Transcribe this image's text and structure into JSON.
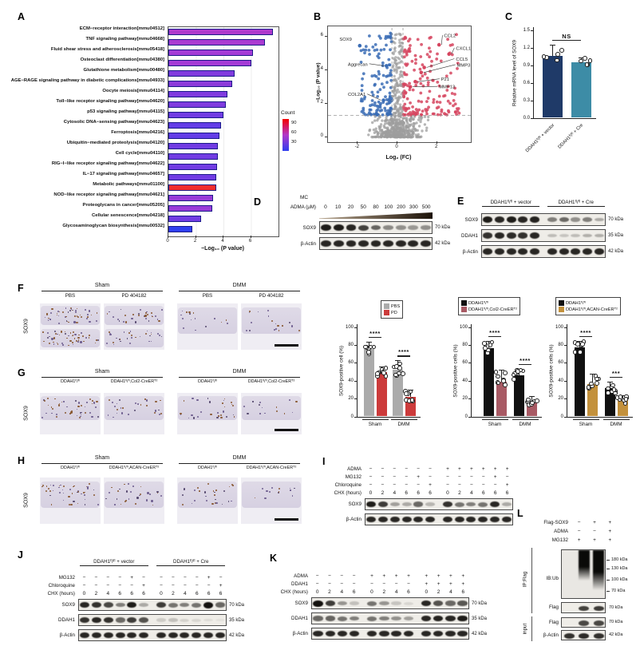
{
  "panel_a": {
    "letter": "A",
    "xlabel": "−Log₁₀ (P value)",
    "xticks": [
      "0",
      "2",
      "4",
      "6"
    ],
    "xmax": 8,
    "legend": {
      "title": "Count",
      "ticks": [
        "90",
        "60",
        "30"
      ],
      "colors": [
        "#F50000",
        "#B238C9",
        "#2F3FEF"
      ]
    },
    "pathways": [
      {
        "label": "ECM−receptor interaction[mmu04512]",
        "value": 7.6,
        "color": "#AF3ACD"
      },
      {
        "label": "TNF signaling pathway[mmu04668]",
        "value": 7.0,
        "color": "#AA3BD1"
      },
      {
        "label": "Fluid shear stress and atherosclerosis[mmu05418]",
        "value": 6.15,
        "color": "#A43BD6"
      },
      {
        "label": "Osteoclast differentiation[mmu04380]",
        "value": 6.0,
        "color": "#A43BD6"
      },
      {
        "label": "Glutathione metabolism[mmu00480]",
        "value": 4.8,
        "color": "#803BDE"
      },
      {
        "label": "AGE−RAGE signaling pathway in diabetic complications[mmu04933]",
        "value": 4.65,
        "color": "#8C3BDA"
      },
      {
        "label": "Oocyte meiosis[mmu04114]",
        "value": 4.3,
        "color": "#7F3BDF"
      },
      {
        "label": "Toll−like receptor signaling pathway[mmu04620]",
        "value": 4.15,
        "color": "#7F3BDF"
      },
      {
        "label": "p53 signaling pathway[mmu04115]",
        "value": 4.0,
        "color": "#713CE3"
      },
      {
        "label": "Cytosolic DNA−sensing pathway[mmu04623]",
        "value": 3.8,
        "color": "#633DE7"
      },
      {
        "label": "Ferroptosis[mmu04216]",
        "value": 3.7,
        "color": "#633DE7"
      },
      {
        "label": "Ubiquitin−mediated proteolysis[mmu04120]",
        "value": 3.6,
        "color": "#713CE3"
      },
      {
        "label": "Cell cycle[mmu04110]",
        "value": 3.6,
        "color": "#713CE3"
      },
      {
        "label": "RIG−I−like receptor signaling pathway[mmu04622]",
        "value": 3.55,
        "color": "#713CE3"
      },
      {
        "label": "IL−17 signaling pathway[mmu04657]",
        "value": 3.5,
        "color": "#713CE3"
      },
      {
        "label": "Metabolic pathways[mmu01100]",
        "value": 3.5,
        "color": "#F02D2D"
      },
      {
        "label": "NOD−like receptor signaling pathway[mmu04621]",
        "value": 3.25,
        "color": "#993BD8"
      },
      {
        "label": "Proteoglycans in cancer[mmu05205]",
        "value": 3.2,
        "color": "#993BD8"
      },
      {
        "label": "Cellular senescence[mmu04218]",
        "value": 2.35,
        "color": "#713CE3"
      },
      {
        "label": "Glycosaminoglycan biosynthesis[mmu00532]",
        "value": 1.75,
        "color": "#2F3FEF"
      }
    ]
  },
  "panel_b": {
    "letter": "B",
    "xlabel": "Log₂ (FC)",
    "ylabel": "−Log₁₀ (P value)",
    "xticks": [
      "-2",
      "0",
      "2"
    ],
    "yticks": [
      "0",
      "2",
      "4",
      "6"
    ],
    "colors": {
      "up": "#D6455F",
      "down": "#3A6CB5",
      "ns": "#9E9E9E"
    },
    "genes": [
      {
        "name": "SOX9",
        "lx": -2.3,
        "ly": 5.8,
        "px": -1.9,
        "py": 5.45,
        "side": "left",
        "line": false
      },
      {
        "name": "Aggrecan",
        "lx": -1.5,
        "ly": 4.3,
        "px": -0.55,
        "py": 4.25,
        "side": "left",
        "line": true
      },
      {
        "name": "COL2A1",
        "lx": -1.6,
        "ly": 2.5,
        "px": -0.7,
        "py": 2.2,
        "side": "left",
        "line": true
      },
      {
        "name": "CCL2",
        "lx": 2.35,
        "ly": 6.0,
        "px": 2.1,
        "py": 5.5,
        "side": "right",
        "line": true
      },
      {
        "name": "CXCL10",
        "lx": 2.95,
        "ly": 5.25,
        "px": 2.6,
        "py": 4.95,
        "side": "right",
        "line": true
      },
      {
        "name": "CCL5",
        "lx": 2.95,
        "ly": 4.6,
        "px": 1.35,
        "py": 4.15,
        "side": "right",
        "line": true
      },
      {
        "name": "MMP3",
        "lx": 3.0,
        "ly": 4.25,
        "px": 1.2,
        "py": 3.85,
        "side": "right",
        "line": true
      },
      {
        "name": "P21",
        "lx": 2.2,
        "ly": 3.4,
        "px": 0.9,
        "py": 3.3,
        "side": "right",
        "line": true
      },
      {
        "name": "MMP13",
        "lx": 2.1,
        "ly": 2.95,
        "px": 0.65,
        "py": 3.0,
        "side": "right",
        "line": true
      }
    ]
  },
  "panel_c": {
    "letter": "C",
    "ylabel": "Relative mRNA level of SOX9",
    "yticks": [
      "0.0",
      "0.3",
      "0.6",
      "0.9",
      "1.2",
      "1.5"
    ],
    "ymax": 1.5,
    "sig": "NS",
    "bars": [
      {
        "label": "DDAH1ᶠˡ/ᶠˡ + vector",
        "v": 1.07,
        "err": 0.18,
        "color": "#1F3A68",
        "n": 5
      },
      {
        "label": "DDAH1ᶠˡ/ᶠˡ + Cre",
        "v": 0.95,
        "err": 0.09,
        "color": "#3D8CA6",
        "n": 5
      }
    ]
  },
  "panel_d": {
    "letter": "D",
    "treatment": "MC",
    "dose_label": "ADMA (μM)",
    "doses": [
      "0",
      "10",
      "20",
      "50",
      "80",
      "100",
      "200",
      "300",
      "500"
    ],
    "bands": [
      {
        "label": "SOX9",
        "kda": "70 kDa",
        "ints": [
          0.95,
          0.95,
          0.9,
          0.78,
          0.62,
          0.45,
          0.42,
          0.38,
          0.42
        ]
      },
      {
        "label": "β-Actin",
        "kda": "42 kDa",
        "ints": [
          0.9,
          0.9,
          0.9,
          0.9,
          0.9,
          0.9,
          0.9,
          0.9,
          0.9
        ]
      }
    ]
  },
  "panel_e": {
    "letter": "E",
    "groups": [
      {
        "label": "DDAH1ᶠˡ/ᶠˡ + vector",
        "n": 5
      },
      {
        "label": "DDAH1ᶠˡ/ᶠˡ + Cre",
        "n": 5
      }
    ],
    "bands": [
      {
        "label": "SOX9",
        "kda": "70 kDa",
        "ints": [
          0.95,
          0.9,
          0.95,
          0.9,
          0.92,
          0.5,
          0.6,
          0.42,
          0.5,
          0.3
        ]
      },
      {
        "label": "DDAH1",
        "kda": "35 kDa",
        "ints": [
          0.85,
          0.9,
          0.88,
          0.85,
          0.9,
          0.22,
          0.18,
          0.22,
          0.28,
          0.28
        ]
      },
      {
        "label": "β-Actin",
        "kda": "42 kDa",
        "ints": [
          0.9,
          0.9,
          0.9,
          0.9,
          0.9,
          0.9,
          0.9,
          0.9,
          0.9,
          0.9
        ]
      }
    ]
  },
  "panel_f": {
    "letter": "F",
    "side_label": "SOX9",
    "group1": "Sham",
    "group2": "DMM",
    "cols": [
      "PBS",
      "PD 404182",
      "PBS",
      "PD 404182"
    ]
  },
  "chart_f": {
    "ylabel": "SOX9-positive cell (%)",
    "ymax": 100,
    "yticks": [
      "0",
      "20",
      "40",
      "60",
      "80",
      "100"
    ],
    "legend": [
      {
        "label": "PBS",
        "color": "#ABABAB"
      },
      {
        "label": "PD",
        "color": "#CC3B3B"
      }
    ],
    "groups": [
      {
        "label": "Sham",
        "sig": "****",
        "bars": [
          {
            "v": 76,
            "err": 8,
            "color": "#ABABAB",
            "n": 7
          },
          {
            "v": 50,
            "err": 6,
            "color": "#CC3B3B",
            "n": 8
          }
        ]
      },
      {
        "label": "DMM",
        "sig": "****",
        "bars": [
          {
            "v": 53,
            "err": 10,
            "color": "#ABABAB",
            "n": 8
          },
          {
            "v": 22,
            "err": 8,
            "color": "#CC3B3B",
            "n": 8
          }
        ]
      }
    ]
  },
  "panel_g": {
    "letter": "G",
    "side_label": "SOX9",
    "group1": "Sham",
    "group2": "DMM",
    "cols": [
      "DDAH1ᶠˡ/ᶠˡ",
      "DDAH1ᶠˡ/ᶠˡ,Col2-CreERᵀ²",
      "DDAH1ᶠˡ/ᶠˡ",
      "DDAH1ᶠˡ/ᶠˡ,Col2-CreERᵀ²"
    ]
  },
  "chart_g": {
    "ylabel": "SOX9-positive cells (%)",
    "ymax": 100,
    "yticks": [
      "0",
      "20",
      "40",
      "60",
      "80",
      "100"
    ],
    "legend": [
      {
        "label": "DDAH1ᶠˡ/ᶠˡ",
        "color": "#111111"
      },
      {
        "label": "DDAH1ᶠˡ/ᶠˡ,Col2-CreERᵀ²",
        "color": "#A85A64"
      }
    ],
    "groups": [
      {
        "label": "Sham",
        "sig": "****",
        "bars": [
          {
            "v": 77,
            "err": 8,
            "color": "#111111",
            "n": 7
          },
          {
            "v": 39,
            "err": 14,
            "color": "#A85A64",
            "n": 8
          }
        ]
      },
      {
        "label": "DMM",
        "sig": "****",
        "bars": [
          {
            "v": 46,
            "err": 8,
            "color": "#111111",
            "n": 8
          },
          {
            "v": 17,
            "err": 6,
            "color": "#A85A64",
            "n": 8
          }
        ]
      }
    ]
  },
  "panel_h": {
    "letter": "H",
    "side_label": "SOX9",
    "group1": "Sham",
    "group2": "DMM",
    "cols": [
      "DDAH1ᶠˡ/ᶠˡ",
      "DDAH1ᶠˡ/ᶠˡ,ACAN-CreERᵀ²",
      "DDAH1ᶠˡ/ᶠˡ",
      "DDAH1ᶠˡ/ᶠˡ,ACAN-CreERᵀ²"
    ]
  },
  "chart_h": {
    "ylabel": "SOX9-positive cells (%)",
    "ymax": 100,
    "yticks": [
      "0",
      "20",
      "40",
      "60",
      "80",
      "100"
    ],
    "legend": [
      {
        "label": "DDAH1ᶠˡ/ᶠˡ",
        "color": "#111111"
      },
      {
        "label": "DDAH1ᶠˡ/ᶠˡ,ACAN-CreERᵀ²",
        "color": "#C3913C"
      }
    ],
    "groups": [
      {
        "label": "Sham",
        "sig": "****",
        "bars": [
          {
            "v": 78,
            "err": 7,
            "color": "#111111",
            "n": 7
          },
          {
            "v": 37,
            "err": 11,
            "color": "#C3913C",
            "n": 8
          }
        ]
      },
      {
        "label": "DMM",
        "sig": "***",
        "bars": [
          {
            "v": 32,
            "err": 7,
            "color": "#111111",
            "n": 8
          },
          {
            "v": 19,
            "err": 5,
            "color": "#C3913C",
            "n": 8
          }
        ]
      }
    ]
  },
  "panel_i": {
    "letter": "I",
    "conds": [
      {
        "label": "ADMA",
        "values": [
          "−",
          "−",
          "−",
          "−",
          "−",
          "−",
          "+",
          "+",
          "+",
          "+",
          "+",
          "+"
        ]
      },
      {
        "label": "MG132",
        "values": [
          "−",
          "−",
          "−",
          "−",
          "+",
          "−",
          "−",
          "−",
          "−",
          "−",
          "+",
          "−"
        ]
      },
      {
        "label": "Chloroquine",
        "values": [
          "−",
          "−",
          "−",
          "−",
          "−",
          "+",
          "−",
          "−",
          "−",
          "−",
          "−",
          "+"
        ]
      },
      {
        "label": "CHX (hours)",
        "values": [
          "0",
          "2",
          "4",
          "6",
          "6",
          "6",
          "0",
          "2",
          "4",
          "6",
          "6",
          "6"
        ]
      }
    ],
    "bands": [
      {
        "label": "SOX9",
        "ints": [
          0.95,
          0.8,
          0.35,
          0.3,
          0.6,
          0.25,
          0.85,
          0.55,
          0.5,
          0.55,
          0.9,
          0.3
        ]
      },
      {
        "label": "β-Actin",
        "ints": [
          0.9,
          0.9,
          0.9,
          0.9,
          0.9,
          0.9,
          0.9,
          0.9,
          0.9,
          0.9,
          0.9,
          0.9
        ]
      }
    ]
  },
  "panel_j": {
    "letter": "J",
    "groups": [
      {
        "label": "DDAH1ᶠˡ/ᶠˡ + vector",
        "n": 6
      },
      {
        "label": "DDAH1ᶠˡ/ᶠˡ + Cre",
        "n": 6
      }
    ],
    "conds": [
      {
        "label": "MG132",
        "values": [
          "−",
          "−",
          "−",
          "−",
          "+",
          "−",
          "−",
          "−",
          "−",
          "−",
          "+",
          "−"
        ]
      },
      {
        "label": "Chloroquine",
        "values": [
          "−",
          "−",
          "−",
          "−",
          "−",
          "+",
          "−",
          "−",
          "−",
          "−",
          "−",
          "+"
        ]
      },
      {
        "label": "CHX (hours)",
        "values": [
          "0",
          "2",
          "4",
          "6",
          "6",
          "6",
          "0",
          "2",
          "4",
          "6",
          "6",
          "6"
        ]
      }
    ],
    "bands": [
      {
        "label": "SOX9",
        "kda": "70 kDa",
        "ints": [
          0.9,
          0.85,
          0.75,
          0.5,
          0.95,
          0.3,
          0.8,
          0.55,
          0.5,
          0.55,
          1,
          0.6
        ]
      },
      {
        "label": "DDAH1",
        "kda": "35 kDa",
        "ints": [
          0.85,
          0.9,
          0.85,
          0.6,
          0.8,
          0.7,
          0.15,
          0.2,
          0.12,
          0.1,
          0.08,
          0.05
        ]
      },
      {
        "label": "β-Actin",
        "kda": "42 kDa",
        "ints": [
          0.9,
          0.9,
          0.9,
          0.9,
          0.9,
          0.9,
          0.9,
          0.9,
          0.9,
          0.9,
          0.9,
          0.9
        ]
      }
    ]
  },
  "panel_k": {
    "letter": "K",
    "conds": [
      {
        "label": "ADMA",
        "values": [
          "−",
          "−",
          "−",
          "−",
          "+",
          "+",
          "+",
          "+",
          "+",
          "+",
          "+",
          "+"
        ]
      },
      {
        "label": "DDAH1",
        "values": [
          "−",
          "−",
          "−",
          "−",
          "−",
          "−",
          "−",
          "−",
          "+",
          "+",
          "+",
          "+"
        ]
      },
      {
        "label": "CHX (hours)",
        "values": [
          "0",
          "2",
          "4",
          "6",
          "0",
          "2",
          "4",
          "6",
          "0",
          "2",
          "4",
          "6"
        ]
      }
    ],
    "bands": [
      {
        "label": "SOX9",
        "kda": "70 kDa",
        "ints": [
          1,
          0.8,
          0.4,
          0.2,
          0.55,
          0.4,
          0.18,
          0.1,
          0.9,
          0.7,
          0.6,
          0.68
        ]
      },
      {
        "label": "DDAH1",
        "kda": "35 kDa",
        "ints": [
          0.6,
          0.62,
          0.55,
          0.5,
          0.55,
          0.5,
          0.42,
          0.35,
          0.9,
          0.92,
          0.9,
          0.95
        ]
      },
      {
        "label": "β-Actin",
        "kda": "42 kDa",
        "ints": [
          0.9,
          0.9,
          0.9,
          0.9,
          0.9,
          0.9,
          0.9,
          0.9,
          0.9,
          0.9,
          0.9,
          0.9
        ]
      }
    ]
  },
  "panel_l": {
    "letter": "L",
    "conds": [
      {
        "label": "Flag-SOX9",
        "values": [
          "−",
          "+",
          "+"
        ]
      },
      {
        "label": "ADMA",
        "values": [
          "−",
          "−",
          "+"
        ]
      },
      {
        "label": "MG132",
        "values": [
          "+",
          "+",
          "+"
        ]
      }
    ],
    "ip_label": "IP:Flag",
    "input_label": "input",
    "ib_label": "IB:Ub",
    "markers": [
      "180 kDa",
      "130 kDa",
      "100 kDa",
      "70 kDa"
    ],
    "smear": [
      0,
      0.62,
      0.8
    ],
    "flag_ip": {
      "label": "Flag",
      "kda": "70 kDa",
      "ints": [
        0,
        0.78,
        0.8
      ]
    },
    "input_flag": {
      "label": "Flag",
      "kda": "70 kDa",
      "ints": [
        0,
        0.75,
        0.75
      ]
    },
    "input_actin": {
      "label": "β-Actin",
      "kda": "42 kDa",
      "ints": [
        0.85,
        0.88,
        0.85
      ]
    }
  }
}
